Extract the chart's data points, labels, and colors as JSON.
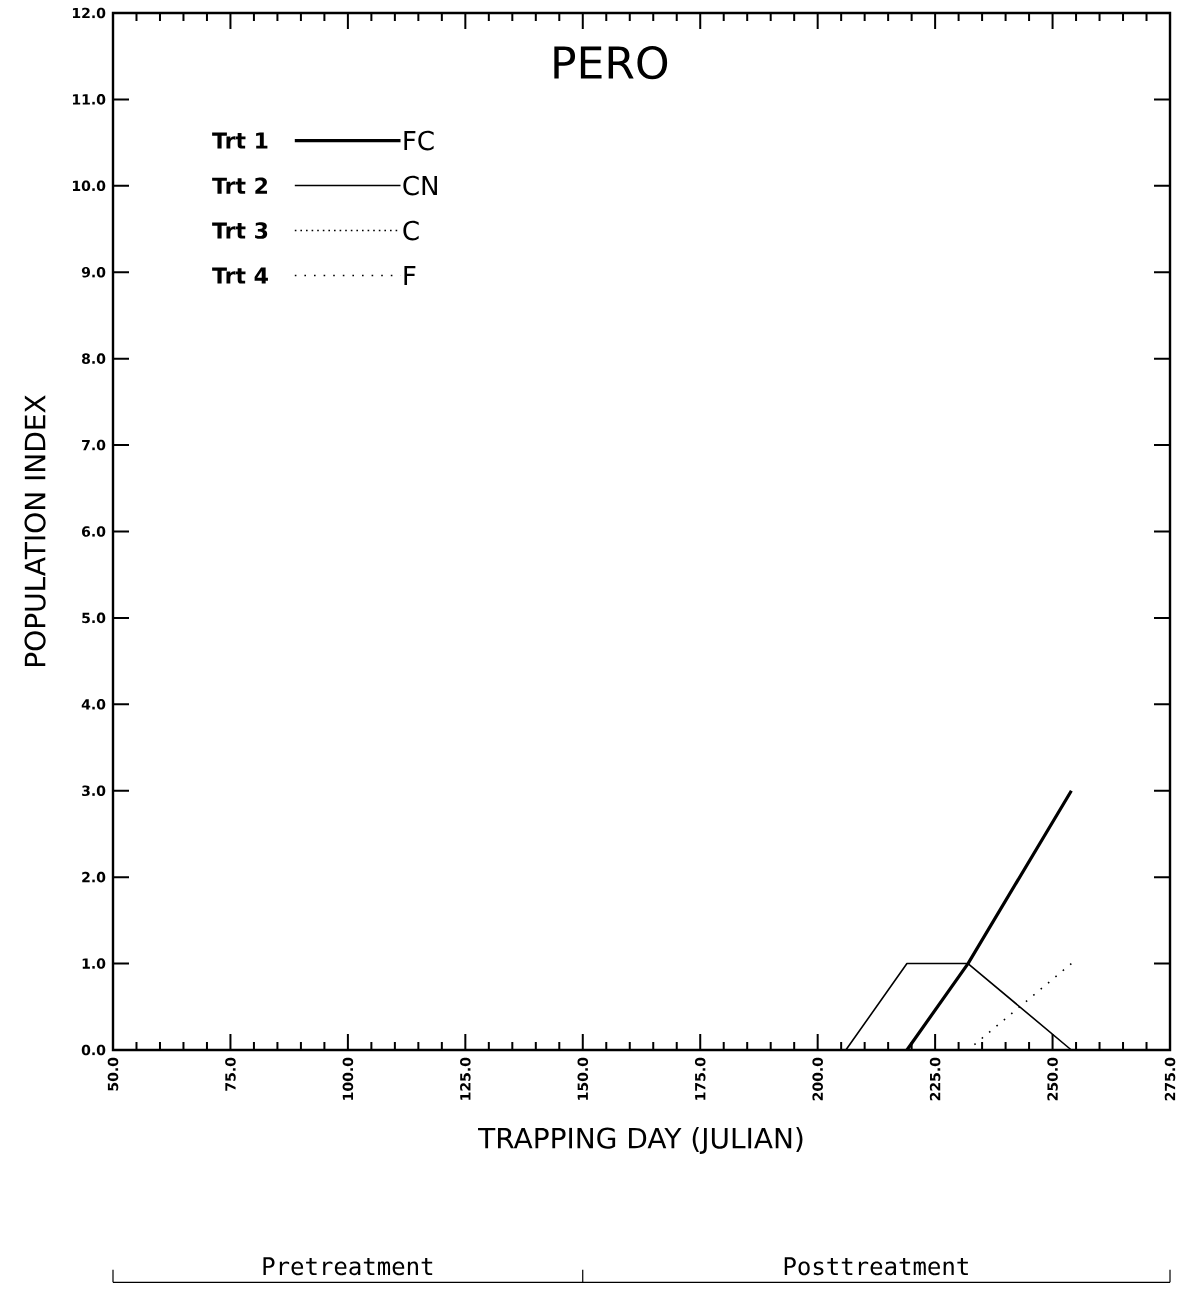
{
  "chart_data": {
    "type": "line",
    "title": "PERO",
    "xlabel": "TRAPPING DAY (JULIAN)",
    "ylabel": "POPULATION INDEX",
    "xlim": [
      50,
      275
    ],
    "ylim": [
      0,
      12
    ],
    "xticks": [
      {
        "value": 50,
        "label": "50.0"
      },
      {
        "value": 75,
        "label": "75.0"
      },
      {
        "value": 100,
        "label": "100.0"
      },
      {
        "value": 125,
        "label": "125.0"
      },
      {
        "value": 150,
        "label": "150.0"
      },
      {
        "value": 175,
        "label": "175.0"
      },
      {
        "value": 200,
        "label": "200.0"
      },
      {
        "value": 225,
        "label": "225.0"
      },
      {
        "value": 250,
        "label": "250.0"
      },
      {
        "value": 275,
        "label": "275.0"
      }
    ],
    "yticks": [
      {
        "value": 0,
        "label": "0.0"
      },
      {
        "value": 1,
        "label": "1.0"
      },
      {
        "value": 2,
        "label": "2.0"
      },
      {
        "value": 3,
        "label": "3.0"
      },
      {
        "value": 4,
        "label": "4.0"
      },
      {
        "value": 5,
        "label": "5.0"
      },
      {
        "value": 6,
        "label": "6.0"
      },
      {
        "value": 7,
        "label": "7.0"
      },
      {
        "value": 8,
        "label": "8.0"
      },
      {
        "value": 9,
        "label": "9.0"
      },
      {
        "value": 10,
        "label": "10.0"
      },
      {
        "value": 11,
        "label": "11.0"
      },
      {
        "value": 12,
        "label": "12.0"
      }
    ],
    "series": [
      {
        "name": "Trt 1",
        "color": "#000000",
        "line_style": "solid",
        "x": [
          219,
          232,
          254
        ],
        "values": [
          0,
          1.0,
          3.0
        ]
      },
      {
        "name": "Trt 2",
        "color": "#000000",
        "line_style": "solid",
        "x": [
          206,
          219,
          232,
          254
        ],
        "values": [
          0,
          1.0,
          1.0,
          0
        ]
      },
      {
        "name": "Trt 3",
        "color": "#000000",
        "line_style": "dotted"
      },
      {
        "name": "Trt 4",
        "color": "#000000",
        "line_style": "dotted",
        "x": [
          232,
          254
        ],
        "values": [
          0,
          1.0
        ]
      }
    ],
    "annotations": [
      "FC",
      "CN",
      "C",
      "F",
      "Pretreatment",
      "Posttreatment"
    ],
    "legend": "top left",
    "grid": false,
    "marker": "none"
  }
}
